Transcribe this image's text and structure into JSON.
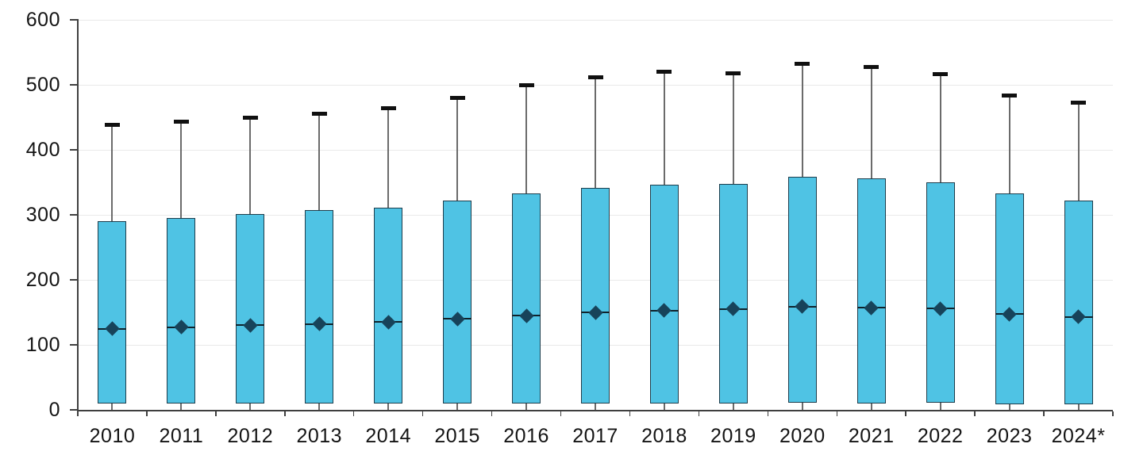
{
  "chart_data": {
    "type": "box",
    "title": "",
    "xlabel": "",
    "ylabel": "",
    "categories": [
      "2010",
      "2011",
      "2012",
      "2013",
      "2014",
      "2015",
      "2016",
      "2017",
      "2018",
      "2019",
      "2020",
      "2021",
      "2022",
      "2023",
      "2024*"
    ],
    "ylim": [
      0,
      600
    ],
    "yticks": [
      0,
      100,
      200,
      300,
      400,
      500,
      600
    ],
    "grid": true,
    "legend": "none",
    "note": "Each category shows a filled range box with a lower whisker to 0, an upper whisker with cap, and a diamond marker on the median line.",
    "series": [
      {
        "name": "range-box",
        "points": [
          {
            "category": "2010",
            "whisker_low": 0,
            "box_low": 10,
            "marker": 125,
            "box_high": 290,
            "whisker_high": 438
          },
          {
            "category": "2011",
            "whisker_low": 0,
            "box_low": 10,
            "marker": 127,
            "box_high": 295,
            "whisker_high": 443
          },
          {
            "category": "2012",
            "whisker_low": 0,
            "box_low": 10,
            "marker": 130,
            "box_high": 301,
            "whisker_high": 450
          },
          {
            "category": "2013",
            "whisker_low": 0,
            "box_low": 10,
            "marker": 132,
            "box_high": 307,
            "whisker_high": 456
          },
          {
            "category": "2014",
            "whisker_low": 0,
            "box_low": 10,
            "marker": 135,
            "box_high": 311,
            "whisker_high": 464
          },
          {
            "category": "2015",
            "whisker_low": 0,
            "box_low": 10,
            "marker": 140,
            "box_high": 322,
            "whisker_high": 480
          },
          {
            "category": "2016",
            "whisker_low": 0,
            "box_low": 10,
            "marker": 145,
            "box_high": 333,
            "whisker_high": 499
          },
          {
            "category": "2017",
            "whisker_low": 0,
            "box_low": 10,
            "marker": 150,
            "box_high": 342,
            "whisker_high": 512
          },
          {
            "category": "2018",
            "whisker_low": 0,
            "box_low": 10,
            "marker": 153,
            "box_high": 346,
            "whisker_high": 520
          },
          {
            "category": "2019",
            "whisker_low": 0,
            "box_low": 10,
            "marker": 155,
            "box_high": 348,
            "whisker_high": 518
          },
          {
            "category": "2020",
            "whisker_low": 0,
            "box_low": 11,
            "marker": 159,
            "box_high": 358,
            "whisker_high": 532
          },
          {
            "category": "2021",
            "whisker_low": 0,
            "box_low": 10,
            "marker": 157,
            "box_high": 356,
            "whisker_high": 528
          },
          {
            "category": "2022",
            "whisker_low": 0,
            "box_low": 11,
            "marker": 156,
            "box_high": 350,
            "whisker_high": 516
          },
          {
            "category": "2023",
            "whisker_low": 0,
            "box_low": 9,
            "marker": 147,
            "box_high": 333,
            "whisker_high": 484
          },
          {
            "category": "2024*",
            "whisker_low": 0,
            "box_low": 9,
            "marker": 143,
            "box_high": 322,
            "whisker_high": 473
          }
        ]
      }
    ]
  },
  "colors": {
    "box_fill": "#4FC3E4",
    "box_border": "#1D3D4C",
    "median_line": "#10222B",
    "marker_diamond": "#17435A",
    "whisker_stem": "#6B6B6B",
    "whisker_cap": "#101010",
    "axis_line": "#3F3F3F",
    "gridline": "#E9E9E9",
    "tick_label": "#141414",
    "background": "#FFFFFF"
  }
}
